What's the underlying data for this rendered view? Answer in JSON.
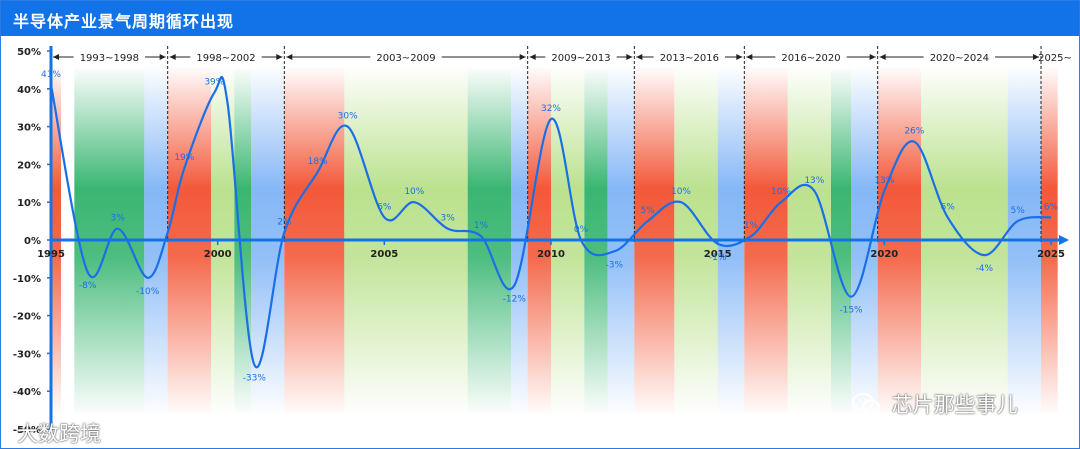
{
  "title": "半导体产业景气周期循环出现",
  "watermarks": {
    "left": "大数跨境",
    "right": "芯片那些事儿",
    "right_icon": "wechat-icon"
  },
  "colors": {
    "accent": "#1273e8",
    "line": "#1a6fe8",
    "red": "#f2502f",
    "green": "#2fb26a",
    "light_green": "#b8e089",
    "blue": "#7fb4f6"
  },
  "chart_data": {
    "type": "line",
    "title": "半导体产业景气周期循环出现",
    "xlabel": "",
    "ylabel": "",
    "xlim": [
      1995,
      2025.7
    ],
    "ylim": [
      -50,
      50
    ],
    "y_ticks": [
      "50%",
      "40%",
      "30%",
      "20%",
      "10%",
      "0%",
      "-10%",
      "-20%",
      "-30%",
      "-40%",
      "-50%"
    ],
    "x_ticks": [
      "1995",
      "2000",
      "2005",
      "2010",
      "2015",
      "2020",
      "2025"
    ],
    "grid": false,
    "series": [
      {
        "name": "",
        "points": [
          {
            "x": 1995.0,
            "y": 41,
            "label": "41%"
          },
          {
            "x": 1996.1,
            "y": -8.5,
            "label": "-8%"
          },
          {
            "x": 1997.0,
            "y": 3,
            "label": "3%"
          },
          {
            "x": 1997.9,
            "y": -10,
            "label": "-10%"
          },
          {
            "x": 1998.5,
            "y": 2,
            "label": ""
          },
          {
            "x": 1999.0,
            "y": 19,
            "label": "19%"
          },
          {
            "x": 1999.9,
            "y": 39,
            "label": "39%"
          },
          {
            "x": 2000.3,
            "y": 36,
            "label": ""
          },
          {
            "x": 2001.1,
            "y": -33,
            "label": "-33%"
          },
          {
            "x": 2002.0,
            "y": 2,
            "label": "2%"
          },
          {
            "x": 2003.0,
            "y": 18,
            "label": "18%"
          },
          {
            "x": 2003.9,
            "y": 30,
            "label": "30%"
          },
          {
            "x": 2005.0,
            "y": 6,
            "label": "6%"
          },
          {
            "x": 2005.9,
            "y": 10,
            "label": "10%"
          },
          {
            "x": 2006.9,
            "y": 3,
            "label": "3%"
          },
          {
            "x": 2007.9,
            "y": 1,
            "label": "1%"
          },
          {
            "x": 2008.9,
            "y": -12,
            "label": "-12%"
          },
          {
            "x": 2010.0,
            "y": 32,
            "label": "32%"
          },
          {
            "x": 2010.9,
            "y": 0,
            "label": "0%"
          },
          {
            "x": 2011.9,
            "y": -3,
            "label": "-3%"
          },
          {
            "x": 2012.9,
            "y": 5,
            "label": "5%"
          },
          {
            "x": 2013.9,
            "y": 10,
            "label": "10%"
          },
          {
            "x": 2015.0,
            "y": -1,
            "label": "-1%"
          },
          {
            "x": 2016.0,
            "y": 1,
            "label": "1%"
          },
          {
            "x": 2016.9,
            "y": 10,
            "label": "10%"
          },
          {
            "x": 2017.9,
            "y": 13,
            "label": "13%"
          },
          {
            "x": 2019.0,
            "y": -15,
            "label": "-15%"
          },
          {
            "x": 2020.0,
            "y": 13,
            "label": "13%"
          },
          {
            "x": 2020.9,
            "y": 26,
            "label": "26%"
          },
          {
            "x": 2021.9,
            "y": 6,
            "label": "6%"
          },
          {
            "x": 2023.0,
            "y": -4,
            "label": "-4%"
          },
          {
            "x": 2024.0,
            "y": 5,
            "label": "5%"
          },
          {
            "x": 2025.0,
            "y": 6,
            "label": "6%"
          }
        ]
      }
    ],
    "cycles": [
      {
        "label": "1993~1998",
        "start": 1995.0,
        "end": 1998.5
      },
      {
        "label": "1998~2002",
        "start": 1998.5,
        "end": 2002.0
      },
      {
        "label": "2003~2009",
        "start": 2002.0,
        "end": 2009.3
      },
      {
        "label": "2009~2013",
        "start": 2009.3,
        "end": 2012.5
      },
      {
        "label": "2013~2016",
        "start": 2012.5,
        "end": 2015.8
      },
      {
        "label": "2016~2020",
        "start": 2015.8,
        "end": 2019.8
      },
      {
        "label": "2020~2024",
        "start": 2019.8,
        "end": 2024.7
      },
      {
        "label": "2025~",
        "start": 2024.7,
        "end": 2025.7
      }
    ],
    "bands": [
      {
        "start": 1995.0,
        "end": 1995.3,
        "color": "red"
      },
      {
        "start": 1995.7,
        "end": 1997.8,
        "color": "green"
      },
      {
        "start": 1997.8,
        "end": 1998.5,
        "color": "blue"
      },
      {
        "start": 1998.5,
        "end": 1999.8,
        "color": "red"
      },
      {
        "start": 1999.8,
        "end": 2000.5,
        "color": "light_green"
      },
      {
        "start": 2000.5,
        "end": 2001.0,
        "color": "green"
      },
      {
        "start": 2001.0,
        "end": 2002.0,
        "color": "blue"
      },
      {
        "start": 2002.0,
        "end": 2003.8,
        "color": "red"
      },
      {
        "start": 2003.8,
        "end": 2007.5,
        "color": "light_green"
      },
      {
        "start": 2007.5,
        "end": 2008.8,
        "color": "green"
      },
      {
        "start": 2008.8,
        "end": 2009.3,
        "color": "blue"
      },
      {
        "start": 2009.3,
        "end": 2010.0,
        "color": "red"
      },
      {
        "start": 2010.0,
        "end": 2011.0,
        "color": "light_green"
      },
      {
        "start": 2011.0,
        "end": 2011.7,
        "color": "green"
      },
      {
        "start": 2011.7,
        "end": 2012.5,
        "color": "blue"
      },
      {
        "start": 2012.5,
        "end": 2013.7,
        "color": "red"
      },
      {
        "start": 2013.7,
        "end": 2015.0,
        "color": "light_green"
      },
      {
        "start": 2015.0,
        "end": 2015.8,
        "color": "blue"
      },
      {
        "start": 2015.8,
        "end": 2017.1,
        "color": "red"
      },
      {
        "start": 2017.1,
        "end": 2018.4,
        "color": "light_green"
      },
      {
        "start": 2018.4,
        "end": 2019.0,
        "color": "green"
      },
      {
        "start": 2019.0,
        "end": 2019.8,
        "color": "blue"
      },
      {
        "start": 2019.8,
        "end": 2021.1,
        "color": "red"
      },
      {
        "start": 2021.1,
        "end": 2023.7,
        "color": "light_green"
      },
      {
        "start": 2023.7,
        "end": 2024.7,
        "color": "blue"
      },
      {
        "start": 2024.7,
        "end": 2025.2,
        "color": "red"
      }
    ]
  }
}
